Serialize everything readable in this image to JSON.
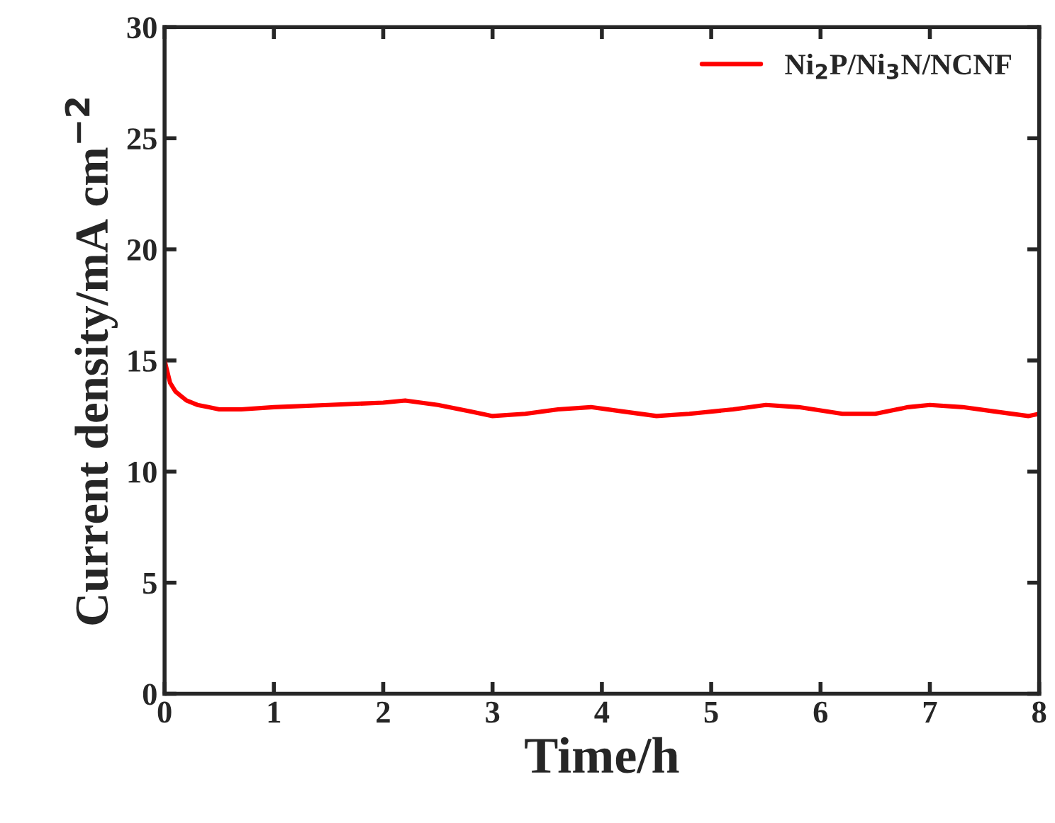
{
  "chart_data": {
    "type": "line",
    "xlabel": "Time/h",
    "ylabel": "Current density/mA cm$^{−2}$",
    "series": [
      {
        "name": "Ni$_{2}$P/Ni$_{3}$N/NCNF",
        "color": "#ff0000",
        "x": [
          0,
          0.05,
          0.1,
          0.2,
          0.3,
          0.4,
          0.5,
          0.7,
          1.0,
          1.5,
          2.0,
          2.2,
          2.5,
          2.8,
          3.0,
          3.3,
          3.6,
          3.9,
          4.2,
          4.5,
          4.8,
          5.2,
          5.5,
          5.8,
          6.2,
          6.5,
          6.8,
          7.0,
          7.3,
          7.6,
          7.9,
          8.0
        ],
        "values": [
          15.0,
          14.0,
          13.6,
          13.2,
          13.0,
          12.9,
          12.8,
          12.8,
          12.9,
          13.0,
          13.1,
          13.2,
          13.0,
          12.7,
          12.5,
          12.6,
          12.8,
          12.9,
          12.7,
          12.5,
          12.6,
          12.8,
          13.0,
          12.9,
          12.6,
          12.6,
          12.9,
          13.0,
          12.9,
          12.7,
          12.5,
          12.6
        ]
      }
    ],
    "xlim": [
      0,
      8
    ],
    "ylim": [
      0,
      30
    ],
    "xticks": [
      0,
      1,
      2,
      3,
      4,
      5,
      6,
      7,
      8
    ],
    "yticks": [
      0,
      5,
      10,
      15,
      20,
      25,
      30
    ],
    "legend": "top right",
    "grid": false,
    "marker": "none",
    "line_style": "solid"
  }
}
